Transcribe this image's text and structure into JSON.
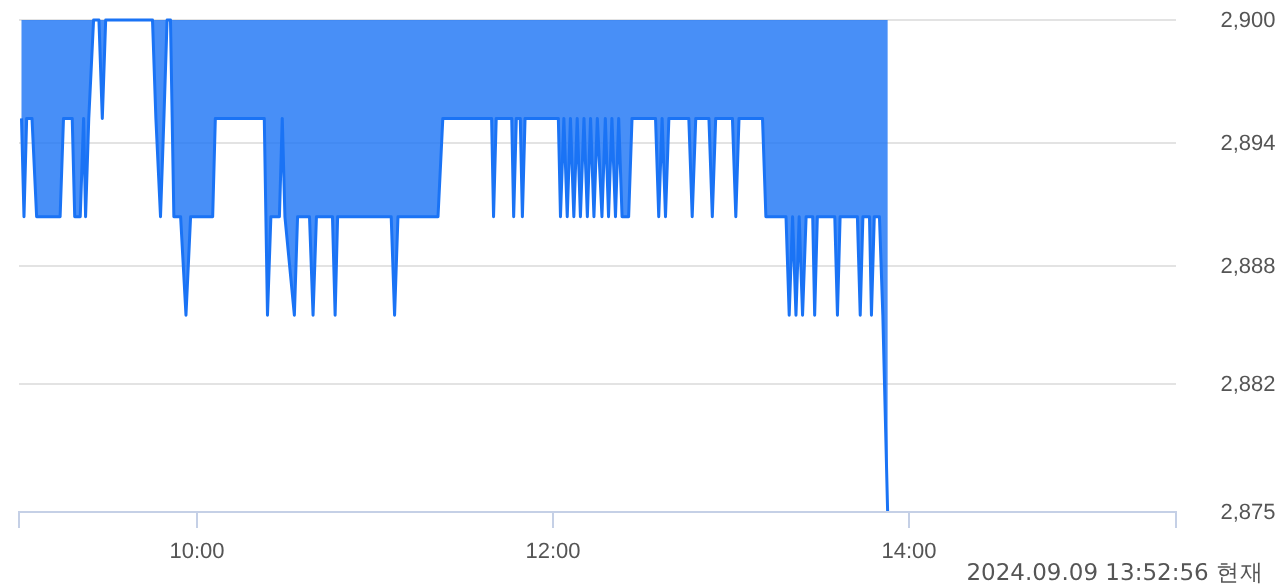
{
  "chart_data": {
    "type": "line",
    "xlim": [
      9,
      15.5
    ],
    "ylim": [
      2875,
      2900
    ],
    "xticks": [
      {
        "value": 10,
        "label": "10:00"
      },
      {
        "value": 12,
        "label": "12:00"
      },
      {
        "value": 14,
        "label": "14:00"
      }
    ],
    "yticks": [
      {
        "value": 2900,
        "label": "2,900"
      },
      {
        "value": 2893.75,
        "label": "2,894"
      },
      {
        "value": 2887.5,
        "label": "2,888"
      },
      {
        "value": 2881.5,
        "label": "2,882"
      },
      {
        "value": 2875,
        "label": "2,875"
      }
    ],
    "grid": "y",
    "annotations": [
      "2024.09.09 13:52:56 현재"
    ],
    "series": [
      {
        "color": "#1a73f5",
        "x": [
          9.014,
          9.028,
          9.043,
          9.073,
          9.099,
          9.231,
          9.25,
          9.299,
          9.313,
          9.344,
          9.363,
          9.374,
          9.392,
          9.419,
          9.449,
          9.468,
          9.487,
          9.75,
          9.769,
          9.795,
          9.814,
          9.832,
          9.851,
          9.87,
          9.908,
          9.938,
          9.964,
          10.088,
          10.103,
          10.378,
          10.396,
          10.415,
          10.463,
          10.479,
          10.494,
          10.547,
          10.565,
          10.632,
          10.652,
          10.671,
          10.761,
          10.776,
          10.79,
          11.091,
          11.11,
          11.129,
          11.354,
          11.381,
          11.655,
          11.666,
          11.681,
          11.768,
          11.779,
          11.794,
          11.816,
          11.828,
          11.843,
          12.03,
          12.042,
          12.061,
          12.08,
          12.098,
          12.117,
          12.136,
          12.154,
          12.174,
          12.193,
          12.211,
          12.23,
          12.249,
          12.275,
          12.294,
          12.312,
          12.331,
          12.351,
          12.369,
          12.388,
          12.425,
          12.444,
          12.576,
          12.594,
          12.613,
          12.632,
          12.651,
          12.763,
          12.782,
          12.802,
          12.876,
          12.895,
          12.914,
          13.008,
          13.027,
          13.045,
          13.177,
          13.196,
          13.309,
          13.327,
          13.346,
          13.365,
          13.383,
          13.402,
          13.422,
          13.459,
          13.47,
          13.485,
          13.583,
          13.598,
          13.613,
          13.71,
          13.726,
          13.741,
          13.778,
          13.789,
          13.805,
          13.834,
          13.853,
          13.88
        ],
        "values": [
          2895,
          2890,
          2895,
          2895,
          2890,
          2890,
          2895,
          2895,
          2890,
          2890,
          2895,
          2890,
          2895,
          2900,
          2900,
          2895,
          2900,
          2900,
          2895,
          2890,
          2895,
          2900,
          2900,
          2890,
          2890,
          2885,
          2890,
          2890,
          2895,
          2895,
          2885,
          2890,
          2890,
          2895,
          2890,
          2885,
          2890,
          2890,
          2885,
          2890,
          2890,
          2885,
          2890,
          2890,
          2885,
          2890,
          2890,
          2895,
          2895,
          2890,
          2895,
          2895,
          2890,
          2895,
          2895,
          2890,
          2895,
          2895,
          2890,
          2895,
          2890,
          2895,
          2890,
          2895,
          2890,
          2895,
          2890,
          2895,
          2890,
          2895,
          2890,
          2895,
          2890,
          2895,
          2890,
          2895,
          2890,
          2890,
          2895,
          2895,
          2890,
          2895,
          2890,
          2895,
          2895,
          2890,
          2895,
          2895,
          2890,
          2895,
          2895,
          2890,
          2895,
          2895,
          2890,
          2890,
          2885,
          2890,
          2885,
          2890,
          2885,
          2890,
          2890,
          2885,
          2890,
          2890,
          2885,
          2890,
          2890,
          2885,
          2890,
          2890,
          2885,
          2890,
          2890,
          2885,
          2875
        ],
        "lower": [
          2895,
          2890,
          2895,
          2895,
          2890,
          2890,
          2895,
          2895,
          2890,
          2890,
          2895,
          2890,
          2895,
          2900,
          2900,
          2895,
          2900,
          2900,
          2895,
          2890,
          2895,
          2900,
          2900,
          2890,
          2890,
          2885,
          2890,
          2890,
          2895,
          2895,
          2885,
          2890,
          2890,
          2895,
          2890,
          2885,
          2890,
          2890,
          2885,
          2890,
          2890,
          2885,
          2890,
          2890,
          2885,
          2890,
          2890,
          2895,
          2895,
          2890,
          2895,
          2895,
          2890,
          2895,
          2895,
          2890,
          2895,
          2895,
          2890,
          2895,
          2890,
          2895,
          2890,
          2895,
          2890,
          2895,
          2890,
          2895,
          2890,
          2895,
          2890,
          2895,
          2890,
          2895,
          2890,
          2895,
          2890,
          2890,
          2895,
          2895,
          2890,
          2895,
          2890,
          2895,
          2895,
          2890,
          2895,
          2895,
          2890,
          2895,
          2895,
          2890,
          2895,
          2895,
          2890,
          2890,
          2885,
          2890,
          2885,
          2890,
          2885,
          2890,
          2890,
          2885,
          2890,
          2890,
          2885,
          2890,
          2890,
          2885,
          2890,
          2890,
          2885,
          2890,
          2890,
          2885,
          2875
        ],
        "upper": [
          2900,
          2900,
          2900,
          2900,
          2900,
          2900,
          2900,
          2900,
          2900,
          2900,
          2900,
          2900,
          2900,
          2900,
          2900,
          2900,
          2900,
          2900,
          2900,
          2900,
          2900,
          2900,
          2900,
          2900,
          2900,
          2900,
          2900,
          2900,
          2900,
          2900,
          2900,
          2900,
          2900,
          2900,
          2900,
          2900,
          2900,
          2900,
          2900,
          2900,
          2900,
          2900,
          2900,
          2900,
          2900,
          2900,
          2900,
          2900,
          2900,
          2900,
          2900,
          2900,
          2900,
          2900,
          2900,
          2900,
          2900,
          2900,
          2900,
          2900,
          2900,
          2900,
          2900,
          2900,
          2900,
          2900,
          2900,
          2900,
          2900,
          2900,
          2900,
          2900,
          2900,
          2900,
          2900,
          2900,
          2900,
          2900,
          2900,
          2900,
          2900,
          2900,
          2900,
          2900,
          2900,
          2900,
          2900,
          2900,
          2900,
          2900,
          2900,
          2900,
          2900,
          2900,
          2900,
          2900,
          2900,
          2900,
          2900,
          2900,
          2900,
          2900,
          2900,
          2900,
          2900,
          2900,
          2900,
          2900,
          2900,
          2900,
          2900,
          2900,
          2900,
          2900,
          2900,
          2900,
          2900
        ]
      }
    ]
  }
}
